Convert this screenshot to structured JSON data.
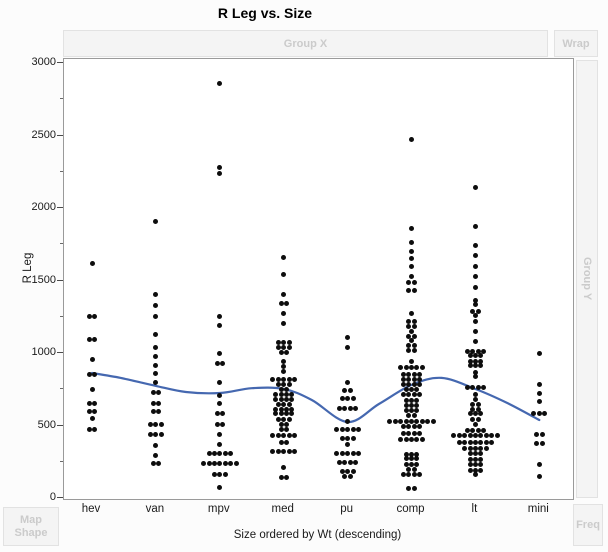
{
  "title": "R Leg vs. Size",
  "zones": {
    "group_x": "Group X",
    "wrap": "Wrap",
    "group_y": "Group Y",
    "map_shape": "Map Shape",
    "freq": "Freq"
  },
  "y_axis": {
    "label": "R Leg",
    "tick_labels": [
      "0",
      "500",
      "1000",
      "1500",
      "2000",
      "2500",
      "3000"
    ],
    "ticks": [
      0,
      500,
      1000,
      1500,
      2000,
      2500,
      3000
    ],
    "minor_tick_interval": 250,
    "min": 0,
    "max": 3000
  },
  "x_axis": {
    "label": "Size ordered by Wt (descending)",
    "categories": [
      "hev",
      "van",
      "mpv",
      "med",
      "pu",
      "comp",
      "lt",
      "mini"
    ]
  },
  "colors": {
    "smoother_line": "#4568b0",
    "dot": "#0d0d0d",
    "zone_text": "#cbcbcb",
    "zone_background": "#f4f4f4",
    "zone_border": "#e2e2e2",
    "plot_border": "#9a9a9a"
  },
  "chart_data": {
    "type": "scatter",
    "title": "R Leg vs. Size",
    "xlabel": "Size ordered by Wt (descending)",
    "ylabel": "R Leg",
    "ylim": [
      0,
      3000
    ],
    "grid": false,
    "categories": [
      "hev",
      "van",
      "mpv",
      "med",
      "pu",
      "comp",
      "lt",
      "mini"
    ],
    "points_by_category": {
      "hev": [
        [
          1620,
          1
        ],
        [
          1255,
          2
        ],
        [
          1095,
          2
        ],
        [
          955,
          1
        ],
        [
          855,
          2
        ],
        [
          750,
          1
        ],
        [
          650,
          2
        ],
        [
          600,
          2
        ],
        [
          550,
          1
        ],
        [
          475,
          2
        ]
      ],
      "van": [
        [
          1905,
          1
        ],
        [
          1405,
          1
        ],
        [
          1325,
          1
        ],
        [
          1255,
          1
        ],
        [
          1130,
          1
        ],
        [
          1040,
          1
        ],
        [
          975,
          1
        ],
        [
          915,
          1
        ],
        [
          860,
          1
        ],
        [
          800,
          1
        ],
        [
          725,
          2
        ],
        [
          655,
          2
        ],
        [
          595,
          2
        ],
        [
          510,
          3
        ],
        [
          440,
          3
        ],
        [
          365,
          1
        ],
        [
          295,
          1
        ],
        [
          235,
          2
        ]
      ],
      "mpv": [
        [
          2860,
          1
        ],
        [
          2280,
          1
        ],
        [
          2240,
          1
        ],
        [
          1255,
          1
        ],
        [
          1190,
          1
        ],
        [
          1000,
          1
        ],
        [
          930,
          2
        ],
        [
          795,
          1
        ],
        [
          705,
          1
        ],
        [
          650,
          1
        ],
        [
          580,
          2
        ],
        [
          510,
          2
        ],
        [
          440,
          1
        ],
        [
          370,
          1
        ],
        [
          310,
          5
        ],
        [
          235,
          7
        ],
        [
          165,
          3
        ],
        [
          70,
          1
        ]
      ],
      "med": [
        [
          1660,
          1
        ],
        [
          1545,
          1
        ],
        [
          1405,
          1
        ],
        [
          1340,
          2
        ],
        [
          1275,
          1
        ],
        [
          1205,
          1
        ],
        [
          1075,
          3
        ],
        [
          1040,
          3
        ],
        [
          1005,
          2
        ],
        [
          945,
          1
        ],
        [
          910,
          1
        ],
        [
          875,
          1
        ],
        [
          820,
          5
        ],
        [
          785,
          3
        ],
        [
          750,
          2
        ],
        [
          715,
          4
        ],
        [
          683,
          4
        ],
        [
          648,
          3
        ],
        [
          614,
          4
        ],
        [
          580,
          4
        ],
        [
          545,
          3
        ],
        [
          510,
          2
        ],
        [
          476,
          2
        ],
        [
          428,
          5
        ],
        [
          386,
          2
        ],
        [
          324,
          5
        ],
        [
          214,
          1
        ],
        [
          145,
          2
        ]
      ],
      "pu": [
        [
          1105,
          1
        ],
        [
          1040,
          1
        ],
        [
          795,
          1
        ],
        [
          740,
          2
        ],
        [
          685,
          3
        ],
        [
          620,
          4
        ],
        [
          530,
          1
        ],
        [
          476,
          5
        ],
        [
          414,
          3
        ],
        [
          372,
          1
        ],
        [
          310,
          5
        ],
        [
          248,
          4
        ],
        [
          186,
          3
        ],
        [
          150,
          2
        ]
      ],
      "comp": [
        [
          2470,
          1
        ],
        [
          1860,
          1
        ],
        [
          1765,
          1
        ],
        [
          1700,
          1
        ],
        [
          1650,
          1
        ],
        [
          1600,
          1
        ],
        [
          1530,
          1
        ],
        [
          1485,
          2
        ],
        [
          1430,
          2
        ],
        [
          1275,
          1
        ],
        [
          1220,
          2
        ],
        [
          1185,
          2
        ],
        [
          1150,
          1
        ],
        [
          1115,
          2
        ],
        [
          1085,
          1
        ],
        [
          1050,
          2
        ],
        [
          1015,
          2
        ],
        [
          945,
          1
        ],
        [
          897,
          5
        ],
        [
          855,
          4
        ],
        [
          820,
          4
        ],
        [
          786,
          4
        ],
        [
          752,
          3
        ],
        [
          717,
          4
        ],
        [
          676,
          3
        ],
        [
          641,
          3
        ],
        [
          607,
          3
        ],
        [
          566,
          2
        ],
        [
          531,
          9
        ],
        [
          490,
          4
        ],
        [
          448,
          4
        ],
        [
          407,
          5
        ],
        [
          303,
          3
        ],
        [
          276,
          3
        ],
        [
          234,
          3
        ],
        [
          200,
          2
        ],
        [
          159,
          4
        ],
        [
          69,
          2
        ]
      ],
      "lt": [
        [
          2145,
          1
        ],
        [
          1870,
          1
        ],
        [
          1740,
          1
        ],
        [
          1670,
          1
        ],
        [
          1600,
          1
        ],
        [
          1530,
          1
        ],
        [
          1450,
          1
        ],
        [
          1360,
          1
        ],
        [
          1338,
          1
        ],
        [
          1290,
          2
        ],
        [
          1256,
          1
        ],
        [
          1221,
          1
        ],
        [
          1152,
          1
        ],
        [
          1083,
          1
        ],
        [
          1014,
          4
        ],
        [
          980,
          3
        ],
        [
          945,
          3
        ],
        [
          911,
          3
        ],
        [
          869,
          1
        ],
        [
          835,
          1
        ],
        [
          759,
          4
        ],
        [
          717,
          1
        ],
        [
          683,
          1
        ],
        [
          648,
          2
        ],
        [
          614,
          2
        ],
        [
          580,
          3
        ],
        [
          545,
          2
        ],
        [
          510,
          1
        ],
        [
          469,
          4
        ],
        [
          428,
          9
        ],
        [
          386,
          7
        ],
        [
          345,
          5
        ],
        [
          310,
          3
        ],
        [
          269,
          3
        ],
        [
          234,
          3
        ],
        [
          193,
          3
        ],
        [
          159,
          1
        ]
      ],
      "mini": [
        [
          1000,
          1
        ],
        [
          786,
          1
        ],
        [
          724,
          1
        ],
        [
          669,
          1
        ],
        [
          586,
          3
        ],
        [
          441,
          2
        ],
        [
          379,
          2
        ],
        [
          234,
          1
        ],
        [
          152,
          1
        ]
      ]
    },
    "smoother": {
      "name": "smoothing spline",
      "points_u_value": [
        [
          0,
          862
        ],
        [
          0.45,
          828
        ],
        [
          1,
          773
        ],
        [
          1.47,
          731
        ],
        [
          2,
          724
        ],
        [
          2.5,
          757
        ],
        [
          3,
          752
        ],
        [
          3.44,
          676
        ],
        [
          4,
          524
        ],
        [
          4.49,
          648
        ],
        [
          5,
          780
        ],
        [
          5.47,
          828
        ],
        [
          6,
          752
        ],
        [
          6.5,
          655
        ],
        [
          7,
          538
        ]
      ]
    },
    "legend": "none"
  }
}
